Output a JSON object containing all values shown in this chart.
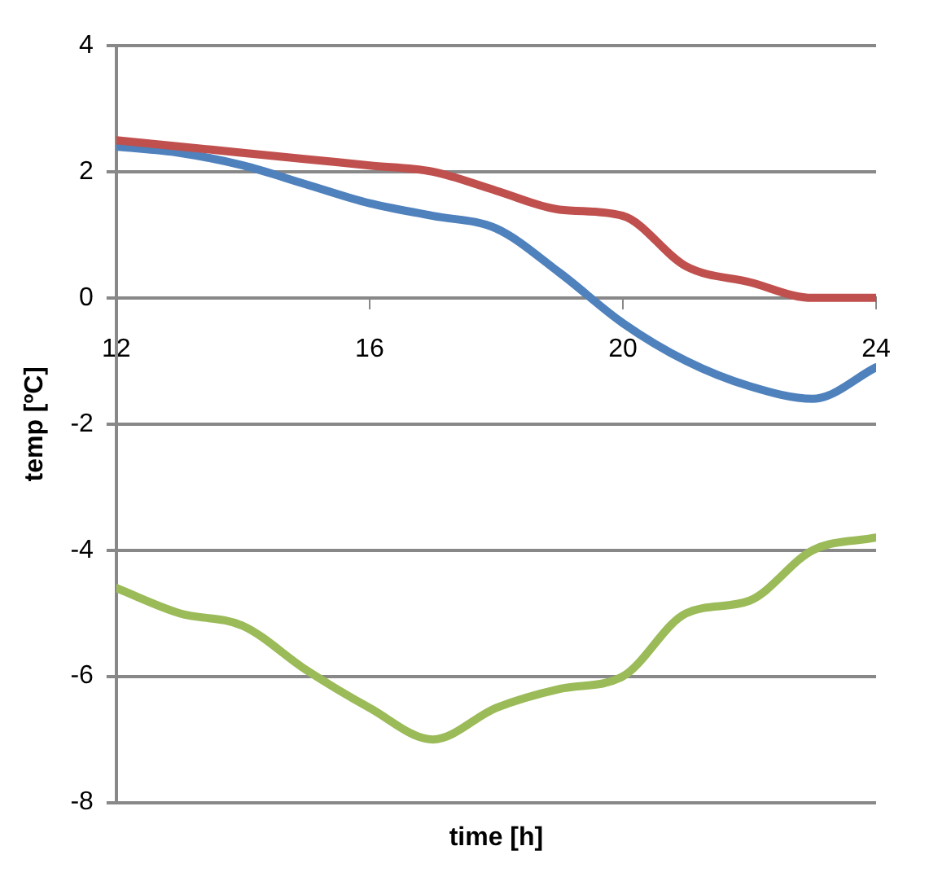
{
  "chart_data": {
    "type": "line",
    "xlabel": "time [h]",
    "ylabel": "temp [ºC]",
    "x": [
      12,
      13,
      14,
      15,
      16,
      17,
      18,
      19,
      20,
      21,
      22,
      23,
      24
    ],
    "series": [
      {
        "color": "#c0504d",
        "values": [
          2.5,
          2.4,
          2.3,
          2.2,
          2.1,
          2.0,
          1.7,
          1.4,
          1.3,
          0.5,
          0.25,
          0.0,
          0.0
        ]
      },
      {
        "color": "#4f81bd",
        "values": [
          2.4,
          2.3,
          2.1,
          1.8,
          1.5,
          1.3,
          1.1,
          0.4,
          -0.4,
          -1.0,
          -1.4,
          -1.6,
          -1.1
        ]
      },
      {
        "color": "#9bbb59",
        "values": [
          -4.6,
          -5.0,
          -5.2,
          -5.9,
          -6.5,
          -7.0,
          -6.5,
          -6.2,
          -6.0,
          -5.0,
          -4.8,
          -4.0,
          -3.8
        ]
      }
    ],
    "xlim": [
      12,
      24
    ],
    "xticks": [
      12,
      16,
      20,
      24
    ],
    "ylim": [
      -8,
      4
    ],
    "yticks": [
      -8,
      -6,
      -4,
      -2,
      0,
      2,
      4
    ],
    "grid": "y",
    "legend": false,
    "marker": "none",
    "line_style": "solid"
  }
}
